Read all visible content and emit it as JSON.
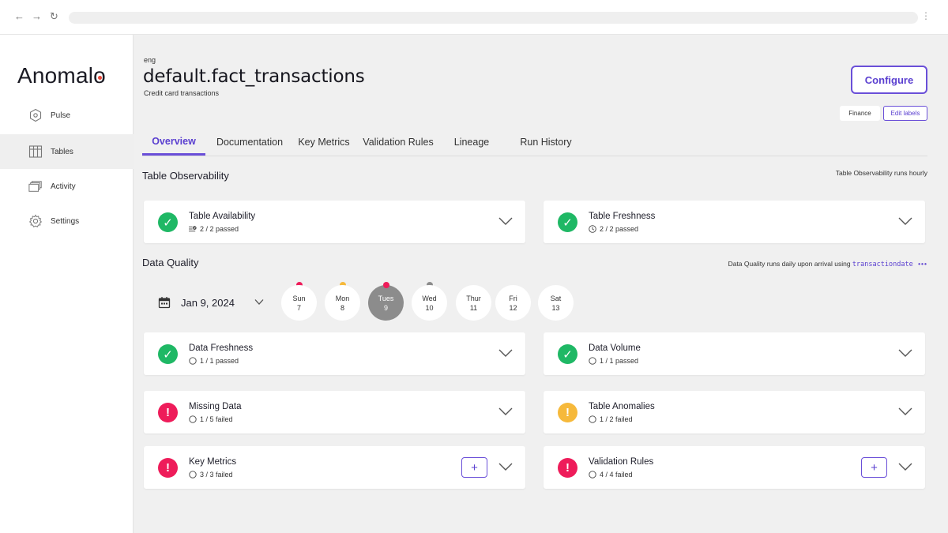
{
  "app": {
    "logo_text": "Anomalo",
    "logo_accent": "#e84a3c"
  },
  "sidebar": {
    "items": [
      {
        "label": "Pulse",
        "icon": "pulse-icon",
        "active": false
      },
      {
        "label": "Tables",
        "icon": "table-icon",
        "active": true
      },
      {
        "label": "Activity",
        "icon": "activity-icon",
        "active": false
      },
      {
        "label": "Settings",
        "icon": "gear-icon",
        "active": false
      }
    ]
  },
  "header": {
    "eyebrow": "eng",
    "title": "default.fact_transactions",
    "subtitle": "Credit card transactions",
    "configure_label": "Configure",
    "labels": [
      "Finance"
    ],
    "edit_labels": "Edit labels"
  },
  "tabs": [
    {
      "label": "Overview",
      "active": true
    },
    {
      "label": "Documentation",
      "active": false
    },
    {
      "label": "Key Metrics",
      "active": false
    },
    {
      "label": "Validation Rules",
      "active": false
    },
    {
      "label": "Lineage",
      "active": false
    },
    {
      "label": "Run History",
      "active": false
    }
  ],
  "observability": {
    "title": "Table Observability",
    "note": "Table Observability runs hourly",
    "cards": [
      {
        "name": "Table Availability",
        "meta": "2 / 2 passed",
        "status": "ok",
        "meta_icon": "checklist-icon"
      },
      {
        "name": "Table Freshness",
        "meta": "2 / 2 passed",
        "status": "ok",
        "meta_icon": "clock-icon"
      }
    ]
  },
  "quality": {
    "title": "Data Quality",
    "note_prefix": "Data Quality runs daily upon arrival using",
    "note_column": "transactiondate",
    "more": "•••",
    "date": "Jan 9, 2024",
    "days": [
      {
        "dow": "Sun",
        "num": "7",
        "dot": "#ee1c5a",
        "selected": false
      },
      {
        "dow": "Mon",
        "num": "8",
        "dot": "#f6b93b",
        "selected": false
      },
      {
        "dow": "Tues",
        "num": "9",
        "dot": "#ee1c5a",
        "selected": true
      },
      {
        "dow": "Wed",
        "num": "10",
        "dot": "#8c8c8c",
        "selected": false
      },
      {
        "dow": "Thur",
        "num": "11",
        "dot": null,
        "selected": false
      },
      {
        "dow": "Fri",
        "num": "12",
        "dot": null,
        "selected": false
      },
      {
        "dow": "Sat",
        "num": "13",
        "dot": null,
        "selected": false
      }
    ],
    "cards": [
      {
        "name": "Data Freshness",
        "meta": "1 / 1 passed",
        "status": "ok",
        "plus": false
      },
      {
        "name": "Data Volume",
        "meta": "1 / 1 passed",
        "status": "ok",
        "plus": false
      },
      {
        "name": "Missing Data",
        "meta": "1 / 5 failed",
        "status": "err",
        "plus": false
      },
      {
        "name": "Table Anomalies",
        "meta": "1 / 2 failed",
        "status": "warn",
        "plus": false
      },
      {
        "name": "Key Metrics",
        "meta": "3 / 3 failed",
        "status": "err",
        "plus": true,
        "plus_label": "+"
      },
      {
        "name": "Validation Rules",
        "meta": "4 / 4 failed",
        "status": "err",
        "plus": true,
        "plus_label": "+"
      }
    ]
  },
  "colors": {
    "accent": "#6a4fd8",
    "ok": "#1fb865",
    "error": "#ee1c5a",
    "warn": "#f6b93b"
  }
}
